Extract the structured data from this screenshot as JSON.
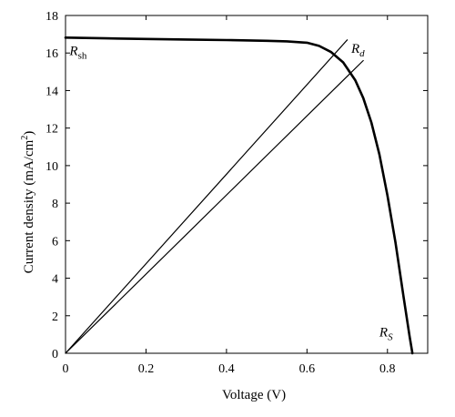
{
  "chart_data": {
    "type": "line",
    "title": "",
    "xlabel": "Voltage (V)",
    "ylabel": {
      "prefix": "Current density (mA/cm",
      "superscript": "2",
      "suffix": ")"
    },
    "xlim": [
      0,
      0.9
    ],
    "ylim": [
      0,
      18
    ],
    "xticks": [
      0,
      0.2,
      0.4,
      0.6,
      0.8
    ],
    "xtick_labels": [
      "0",
      "0.2",
      "0.4",
      "0.6",
      "0.8"
    ],
    "yticks": [
      0,
      2,
      4,
      6,
      8,
      10,
      12,
      14,
      16,
      18
    ],
    "ytick_labels": [
      "0",
      "2",
      "4",
      "6",
      "8",
      "10",
      "12",
      "14",
      "16",
      "18"
    ],
    "grid": false,
    "series": [
      {
        "style": "thick",
        "points": [
          [
            0.0,
            16.82
          ],
          [
            0.1,
            16.78
          ],
          [
            0.2,
            16.75
          ],
          [
            0.3,
            16.72
          ],
          [
            0.4,
            16.69
          ],
          [
            0.5,
            16.65
          ],
          [
            0.55,
            16.62
          ],
          [
            0.6,
            16.55
          ],
          [
            0.63,
            16.38
          ],
          [
            0.66,
            16.05
          ],
          [
            0.69,
            15.5
          ],
          [
            0.72,
            14.55
          ],
          [
            0.74,
            13.6
          ],
          [
            0.76,
            12.3
          ],
          [
            0.78,
            10.6
          ],
          [
            0.8,
            8.4
          ],
          [
            0.82,
            5.9
          ],
          [
            0.84,
            3.0
          ],
          [
            0.855,
            0.9
          ],
          [
            0.862,
            0.0
          ]
        ]
      },
      {
        "style": "thin",
        "points": [
          [
            0.0,
            0.0
          ],
          [
            0.7,
            16.7
          ]
        ]
      },
      {
        "style": "thin",
        "points": [
          [
            0.0,
            0.0
          ],
          [
            0.74,
            15.6
          ]
        ]
      }
    ],
    "annotations": [
      {
        "base": "R",
        "sub": "sh",
        "x": 0.01,
        "y": 15.9
      },
      {
        "base": "R",
        "sub": "d",
        "x": 0.71,
        "y": 16.0
      },
      {
        "base": "R",
        "sub": "S",
        "x": 0.78,
        "y": 0.9
      }
    ]
  }
}
